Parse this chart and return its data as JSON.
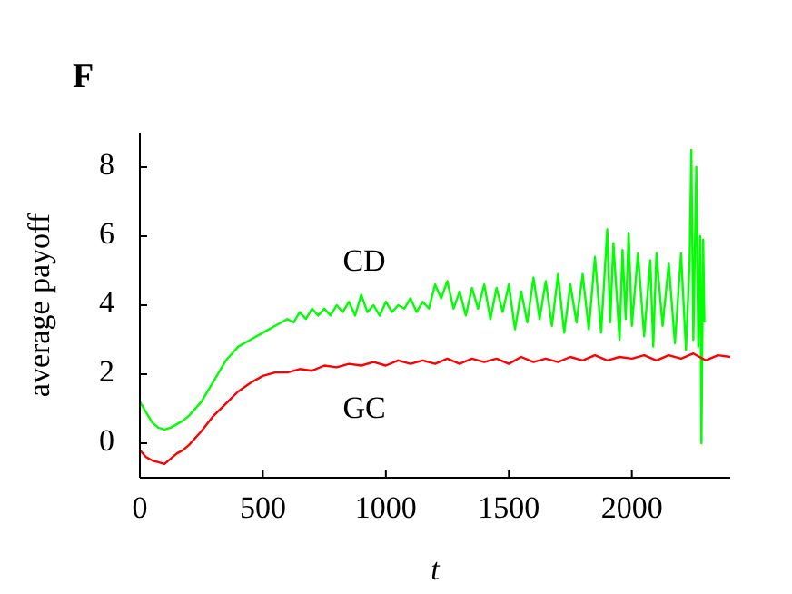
{
  "chart_data": {
    "type": "line",
    "title": "F",
    "xlabel": "t",
    "ylabel": "average payoff",
    "xlim": [
      0,
      2400
    ],
    "ylim": [
      -1,
      9
    ],
    "xticks": [
      0,
      500,
      1000,
      1500,
      2000
    ],
    "yticks": [
      0,
      2,
      4,
      6,
      8
    ],
    "grid": false,
    "line_style": "solid",
    "marker": "none",
    "series": [
      {
        "name": "CD",
        "color": "#00ff00",
        "x": [
          0,
          25,
          50,
          75,
          100,
          125,
          150,
          175,
          200,
          250,
          300,
          350,
          400,
          450,
          500,
          550,
          600,
          625,
          650,
          675,
          700,
          725,
          750,
          775,
          800,
          825,
          850,
          875,
          900,
          925,
          950,
          975,
          1000,
          1025,
          1050,
          1075,
          1100,
          1125,
          1150,
          1175,
          1200,
          1225,
          1250,
          1275,
          1300,
          1325,
          1350,
          1375,
          1400,
          1425,
          1450,
          1475,
          1500,
          1525,
          1550,
          1575,
          1600,
          1625,
          1650,
          1675,
          1700,
          1725,
          1750,
          1775,
          1800,
          1825,
          1850,
          1875,
          1900,
          1912,
          1925,
          1950,
          1962,
          1975,
          1987,
          2000,
          2025,
          2050,
          2075,
          2087,
          2100,
          2125,
          2150,
          2175,
          2200,
          2220,
          2235,
          2242,
          2250,
          2262,
          2270,
          2278,
          2283,
          2290,
          2295
        ],
        "values": [
          1.2,
          0.9,
          0.6,
          0.45,
          0.4,
          0.45,
          0.55,
          0.65,
          0.8,
          1.2,
          1.8,
          2.4,
          2.8,
          3.0,
          3.2,
          3.4,
          3.6,
          3.5,
          3.8,
          3.6,
          3.9,
          3.7,
          3.9,
          3.7,
          4.0,
          3.8,
          4.1,
          3.7,
          4.3,
          3.8,
          4.0,
          3.7,
          4.1,
          3.8,
          4.0,
          3.9,
          4.2,
          3.8,
          4.1,
          3.9,
          4.6,
          4.2,
          4.7,
          3.9,
          4.4,
          3.7,
          4.5,
          3.9,
          4.6,
          3.6,
          4.5,
          3.8,
          4.6,
          3.3,
          4.4,
          3.5,
          4.8,
          3.6,
          4.7,
          3.4,
          4.9,
          3.2,
          4.6,
          3.5,
          4.9,
          3.3,
          5.4,
          3.2,
          6.2,
          3.5,
          5.8,
          3.0,
          5.6,
          3.6,
          6.1,
          3.4,
          5.5,
          3.1,
          5.3,
          2.8,
          5.5,
          3.4,
          5.2,
          2.9,
          5.5,
          2.7,
          5.3,
          8.5,
          3.0,
          8.0,
          2.8,
          6.0,
          0.0,
          5.9,
          3.5
        ]
      },
      {
        "name": "GC",
        "color": "#ff0000",
        "x": [
          0,
          25,
          50,
          75,
          100,
          125,
          150,
          175,
          200,
          250,
          300,
          350,
          400,
          450,
          500,
          550,
          600,
          650,
          700,
          750,
          800,
          850,
          900,
          950,
          1000,
          1050,
          1100,
          1150,
          1200,
          1250,
          1300,
          1350,
          1400,
          1450,
          1500,
          1550,
          1600,
          1650,
          1700,
          1750,
          1800,
          1850,
          1900,
          1950,
          2000,
          2050,
          2100,
          2150,
          2200,
          2250,
          2300,
          2350,
          2400
        ],
        "values": [
          -0.2,
          -0.4,
          -0.5,
          -0.55,
          -0.6,
          -0.45,
          -0.3,
          -0.2,
          -0.05,
          0.35,
          0.8,
          1.15,
          1.5,
          1.75,
          1.95,
          2.05,
          2.05,
          2.15,
          2.1,
          2.25,
          2.2,
          2.3,
          2.25,
          2.35,
          2.25,
          2.4,
          2.3,
          2.4,
          2.3,
          2.45,
          2.3,
          2.45,
          2.35,
          2.45,
          2.3,
          2.5,
          2.35,
          2.45,
          2.35,
          2.5,
          2.4,
          2.55,
          2.4,
          2.5,
          2.45,
          2.55,
          2.4,
          2.55,
          2.45,
          2.6,
          2.4,
          2.55,
          2.5
        ]
      }
    ]
  }
}
